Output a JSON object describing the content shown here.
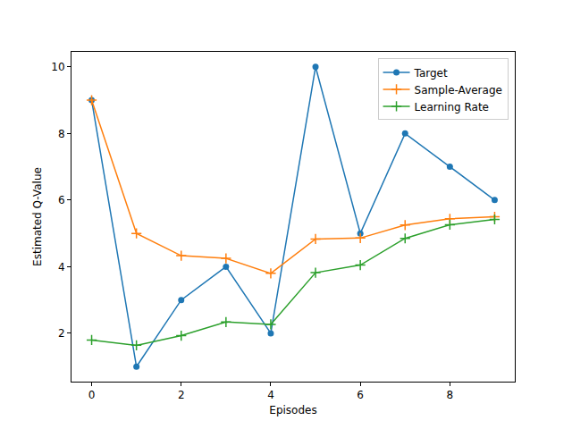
{
  "chart_data": {
    "type": "line",
    "x_label": "Episodes",
    "y_label": "Estimated Q-Value",
    "x": [
      0,
      1,
      2,
      3,
      4,
      5,
      6,
      7,
      8,
      9
    ],
    "series": [
      {
        "name": "Target",
        "color": "#1f77b4",
        "marker": "circle",
        "values": [
          9,
          1,
          3,
          4,
          2,
          10,
          5,
          8,
          7,
          6
        ]
      },
      {
        "name": "Sample-Average",
        "color": "#ff7f0e",
        "marker": "plus",
        "values": [
          9,
          5,
          4.33,
          4.25,
          3.8,
          4.83,
          4.86,
          5.25,
          5.44,
          5.5
        ]
      },
      {
        "name": "Learning Rate",
        "color": "#2ca02c",
        "marker": "plus",
        "values": [
          1.8,
          1.64,
          1.93,
          2.34,
          2.27,
          3.82,
          4.05,
          4.85,
          5.26,
          5.42
        ]
      }
    ],
    "xlim": [
      -0.45,
      9.45
    ],
    "ylim": [
      0.55,
      10.45
    ],
    "xticks": [
      0,
      2,
      4,
      6,
      8
    ],
    "yticks": [
      2,
      4,
      6,
      8,
      10
    ],
    "grid": false,
    "legend": "upper right"
  }
}
